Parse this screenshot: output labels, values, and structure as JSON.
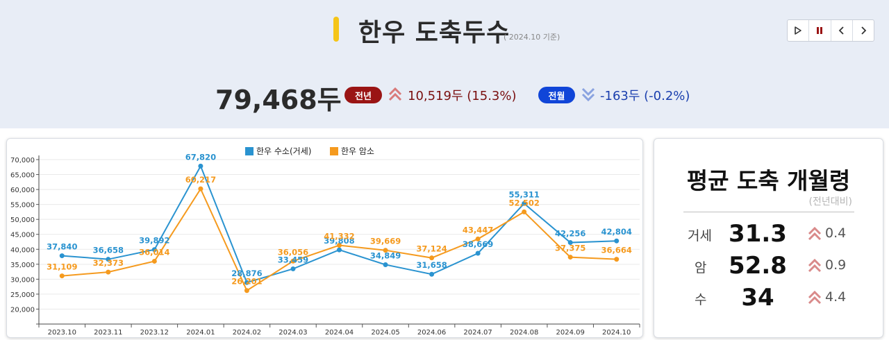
{
  "header": {
    "title": "한우 도축두수",
    "subtitle": "( 2024.10 기준)",
    "accent_color": "#f5c518",
    "controls": [
      {
        "name": "play",
        "icon": "play-icon"
      },
      {
        "name": "pause",
        "icon": "pause-icon"
      },
      {
        "name": "prev",
        "icon": "chevron-left-icon"
      },
      {
        "name": "next",
        "icon": "chevron-right-icon"
      }
    ]
  },
  "summary": {
    "total": "79,468두",
    "prev_year": {
      "label": "전년",
      "value": "10,519두 (15.3%)",
      "direction": "up",
      "color": "#9a1414"
    },
    "prev_month": {
      "label": "전월",
      "value": "-163두 (-0.2%)",
      "direction": "down",
      "color": "#1045d8"
    }
  },
  "chart_data": {
    "type": "line",
    "title": "",
    "xlabel": "",
    "ylabel": "",
    "categories": [
      "2023.10",
      "2023.11",
      "2023.12",
      "2024.01",
      "2024.02",
      "2024.03",
      "2024.04",
      "2024.05",
      "2024.06",
      "2024.07",
      "2024.08",
      "2024.09",
      "2024.10"
    ],
    "series": [
      {
        "name": "한우 수소(거세)",
        "color": "#2a93d0",
        "values": [
          37840,
          36658,
          39892,
          67820,
          28876,
          33459,
          39808,
          34849,
          31658,
          38669,
          55311,
          42256,
          42804
        ],
        "labels": [
          "37,840",
          "36,658",
          "39,892",
          "67,820",
          "28,876",
          "33,459",
          "39,808",
          "34,849",
          "31,658",
          "38,669",
          "55,311",
          "42,256",
          "42,804"
        ]
      },
      {
        "name": "한우 암소",
        "color": "#f59a1e",
        "values": [
          31109,
          32373,
          36014,
          60217,
          26201,
          36056,
          41332,
          39669,
          37124,
          43447,
          52502,
          37375,
          36664
        ],
        "labels": [
          "31,109",
          "32,373",
          "36,014",
          "60,217",
          "26,201",
          "36,056",
          "41,332",
          "39,669",
          "37,124",
          "43,447",
          "52,502",
          "37,375",
          "36,664"
        ]
      }
    ],
    "ylim": [
      15000,
      70000
    ],
    "yticks": [
      20000,
      25000,
      30000,
      35000,
      40000,
      45000,
      50000,
      55000,
      60000,
      65000,
      70000
    ],
    "ytick_labels": [
      "20,000",
      "25,000",
      "30,000",
      "35,000",
      "40,000",
      "45,000",
      "50,000",
      "55,000",
      "60,000",
      "65,000",
      "70,000"
    ],
    "legend": "top-center",
    "grid": true
  },
  "side": {
    "title": "평균 도축 개월령",
    "subtitle": "(전년대비)",
    "rows": [
      {
        "label": "거세",
        "value": "31.3",
        "delta": "0.4",
        "direction": "up"
      },
      {
        "label": "암",
        "value": "52.8",
        "delta": "0.9",
        "direction": "up"
      },
      {
        "label": "수",
        "value": "34",
        "delta": "4.4",
        "direction": "up"
      }
    ]
  }
}
